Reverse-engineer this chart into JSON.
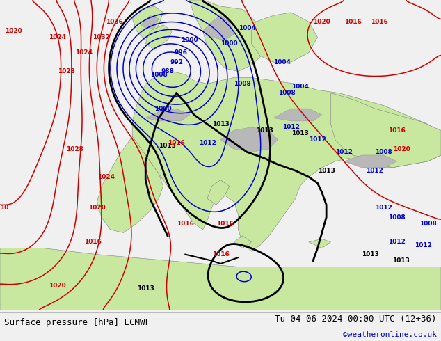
{
  "title_left": "Surface pressure [hPa] ECMWF",
  "title_right": "Tu 04-06-2024 00:00 UTC (12+36)",
  "watermark": "©weatheronline.co.uk",
  "bg_ocean_color": "#d0d0d0",
  "land_color": "#c8e8a0",
  "mountain_color": "#b8b8b8",
  "isobar_low_color": "#0000cc",
  "isobar_high_color": "#cc0000",
  "front_color": "#000000",
  "title_bg": "#f0f0f0",
  "watermark_color": "#0000cc",
  "figsize": [
    6.34,
    4.9
  ],
  "dpi": 100
}
